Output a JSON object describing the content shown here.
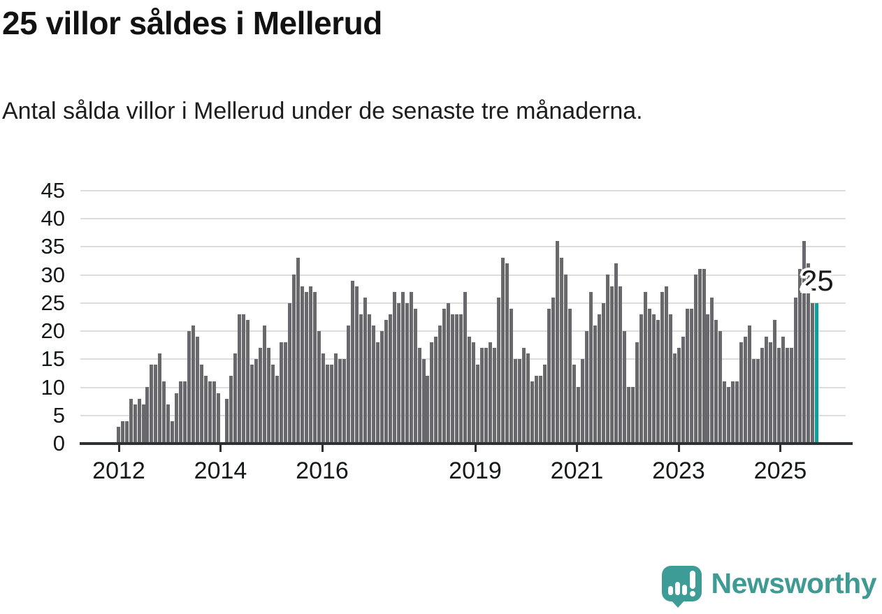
{
  "header": {
    "title": "25 villor såldes i Mellerud",
    "subtitle": "Antal sålda villor i Mellerud under de senaste tre månaderna."
  },
  "chart_data": {
    "type": "bar",
    "title": "25 villor såldes i Mellerud",
    "subtitle": "Antal sålda villor i Mellerud under de senaste tre månaderna.",
    "xlabel": "",
    "ylabel": "",
    "ylim": [
      0,
      45
    ],
    "yticks": [
      0,
      5,
      10,
      15,
      20,
      25,
      30,
      35,
      40,
      45
    ],
    "xticklabels": [
      "2012",
      "2014",
      "2016",
      "2019",
      "2021",
      "2023",
      "2025"
    ],
    "grid": true,
    "legend": false,
    "values": [
      3,
      4,
      4,
      8,
      7,
      8,
      7,
      10,
      14,
      14,
      16,
      11,
      7,
      4,
      9,
      11,
      11,
      20,
      21,
      19,
      14,
      12,
      11,
      11,
      9,
      0,
      8,
      12,
      16,
      23,
      23,
      22,
      14,
      15,
      17,
      21,
      17,
      14,
      12,
      18,
      18,
      25,
      30,
      33,
      28,
      27,
      28,
      27,
      20,
      16,
      14,
      14,
      16,
      15,
      15,
      21,
      29,
      28,
      23,
      26,
      23,
      21,
      18,
      20,
      22,
      23,
      27,
      25,
      27,
      25,
      27,
      24,
      17,
      15,
      12,
      18,
      19,
      21,
      24,
      25,
      23,
      23,
      23,
      27,
      19,
      18,
      14,
      17,
      17,
      18,
      17,
      26,
      33,
      32,
      24,
      15,
      15,
      17,
      16,
      11,
      12,
      12,
      14,
      24,
      26,
      36,
      33,
      30,
      24,
      14,
      10,
      15,
      20,
      27,
      21,
      23,
      25,
      30,
      28,
      32,
      28,
      20,
      10,
      10,
      18,
      23,
      27,
      24,
      23,
      22,
      27,
      28,
      23,
      16,
      17,
      19,
      24,
      24,
      30,
      31,
      31,
      23,
      26,
      22,
      20,
      11,
      10,
      11,
      11,
      18,
      19,
      21,
      15,
      15,
      17,
      19,
      18,
      22,
      17,
      19,
      17,
      17,
      26,
      31,
      36,
      32,
      25,
      25
    ],
    "highlighted_last_bar_value": 25,
    "annotation": "25",
    "colors": {
      "bar": "#69696d",
      "highlight": "#0c9e98",
      "grid": "#dddddd",
      "axis": "#2f3033",
      "text": "#17181a"
    }
  },
  "annotation": {
    "text": "25"
  },
  "logo": {
    "text": "Newsworthy",
    "color": "#3f9a94",
    "mark_color": "#3d9c95"
  }
}
